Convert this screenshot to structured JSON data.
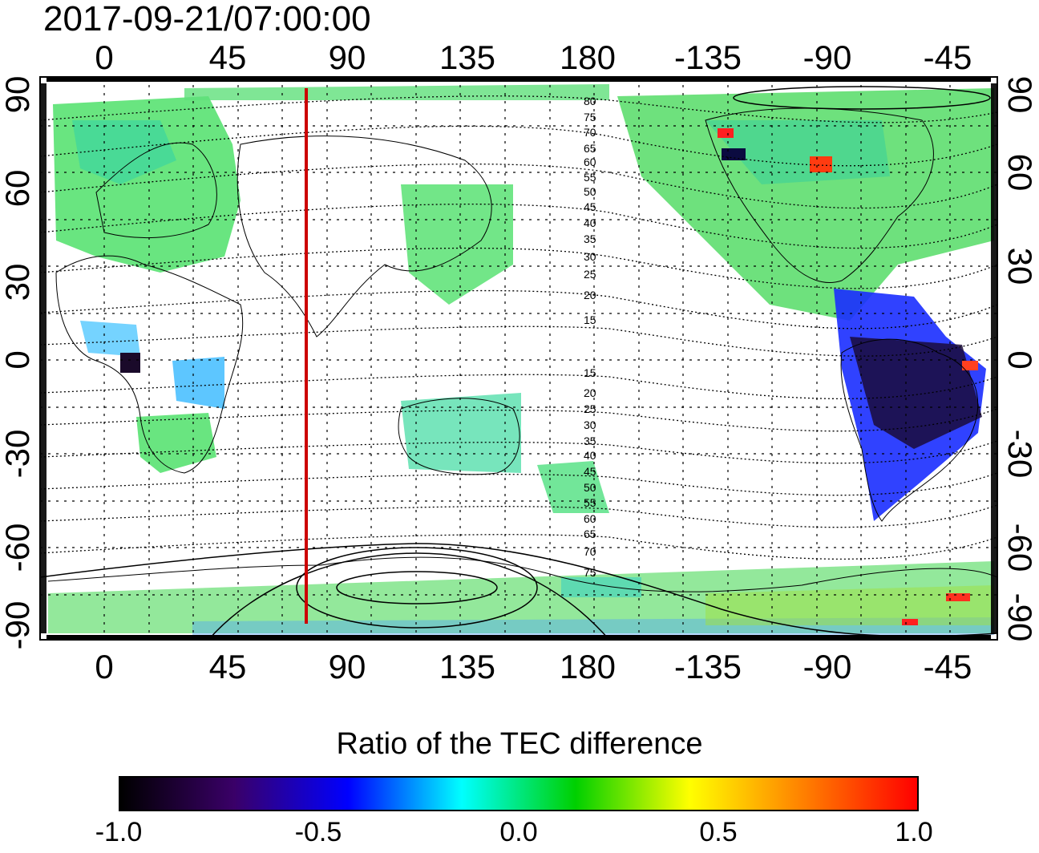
{
  "timestamp": "2017-09-21/07:00:00",
  "colorbar": {
    "title": "Ratio of the TEC difference",
    "ticks": [
      "-1.0",
      "-0.5",
      "0.0",
      "0.5",
      "1.0"
    ],
    "stops": [
      "#000000",
      "#3a0068",
      "#0000ff",
      "#00ffff",
      "#00d000",
      "#ffff00",
      "#ff8000",
      "#ff0000"
    ]
  },
  "map": {
    "lon_ticks": [
      "0",
      "45",
      "90",
      "135",
      "180",
      "-135",
      "-90",
      "-45"
    ],
    "lat_ticks_left": [
      "90",
      "60",
      "30",
      "0",
      "-30",
      "-60",
      "-90"
    ],
    "lat_ticks_right": [
      "90",
      "60",
      "30",
      "0",
      "-30",
      "-60",
      "-90"
    ],
    "geomag_lat_labels_north": [
      "80",
      "75",
      "70",
      "65",
      "60",
      "55",
      "50",
      "45",
      "40",
      "35",
      "30",
      "25",
      "20",
      "15"
    ],
    "geomag_lat_labels_south": [
      "15",
      "20",
      "25",
      "30",
      "35",
      "40",
      "45",
      "50",
      "55",
      "60",
      "65",
      "70",
      "75"
    ],
    "terminator_line_color": "#cc0000",
    "frame_color": "#000000"
  }
}
